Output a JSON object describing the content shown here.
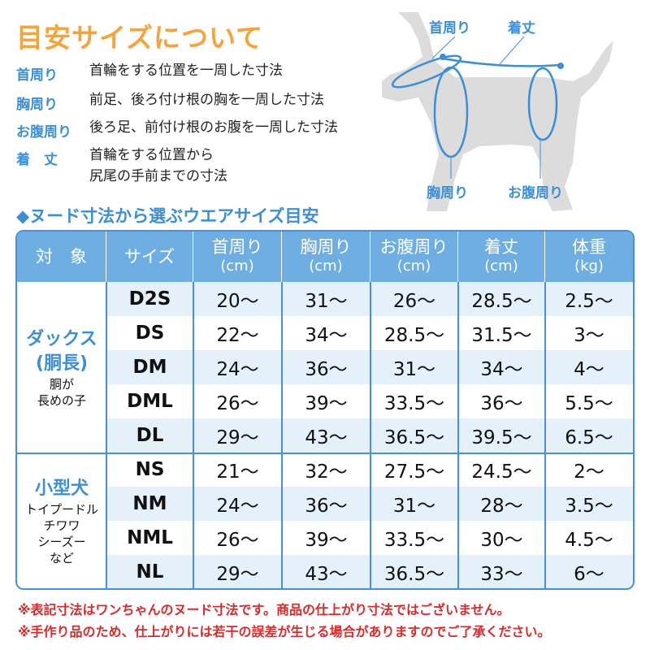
{
  "title": "目安サイズについて",
  "definitions": [
    {
      "term": "首周り",
      "desc": "首輪をする位置を一周した寸法"
    },
    {
      "term": "胸周り",
      "desc": "前足、後ろ付け根の胸を一周した寸法"
    },
    {
      "term": "お腹周り",
      "desc": "後ろ足、前付け根のお腹を一周した寸法"
    },
    {
      "term": "着　丈",
      "desc": "首輪をする位置から",
      "desc2": "尻尾の手前までの寸法"
    }
  ],
  "diagram": {
    "neck": "首周り",
    "length": "着丈",
    "chest": "胸周り",
    "belly": "お腹周り",
    "colors": {
      "silhouette": "#dcdcdc",
      "line": "#3c8fd6"
    }
  },
  "subtitle": "◆ヌード寸法から選ぶウエアサイズ目安",
  "table": {
    "headers": [
      {
        "l": "対　象",
        "u": ""
      },
      {
        "l": "サイズ",
        "u": ""
      },
      {
        "l": "首周り",
        "u": "(cm)"
      },
      {
        "l": "胸周り",
        "u": "(cm)"
      },
      {
        "l": "お腹周り",
        "u": "(cm)"
      },
      {
        "l": "着丈",
        "u": "(cm)"
      },
      {
        "l": "体重",
        "u": "(kg)"
      }
    ],
    "groups": [
      {
        "main": "ダックス",
        "main2": "(胴長)",
        "note": "胴が",
        "note2": "長めの子",
        "rows": [
          [
            "D2S",
            "20～",
            "31～",
            "26～",
            "28.5～",
            "2.5～"
          ],
          [
            "DS",
            "22～",
            "34～",
            "28.5～",
            "31.5～",
            "3～"
          ],
          [
            "DM",
            "24～",
            "36～",
            "31～",
            "34～",
            "4～"
          ],
          [
            "DML",
            "26～",
            "39～",
            "33.5～",
            "36～",
            "5.5～"
          ],
          [
            "DL",
            "29～",
            "43～",
            "36.5～",
            "39.5～",
            "6.5～"
          ]
        ]
      },
      {
        "main": "小型犬",
        "note": "トイプードル",
        "note2": "チワワ",
        "note3": "シーズー",
        "note4": "など",
        "rows": [
          [
            "NS",
            "21～",
            "32～",
            "27.5～",
            "24.5～",
            "2～"
          ],
          [
            "NM",
            "24～",
            "36～",
            "31～",
            "28～",
            "3.5～"
          ],
          [
            "NML",
            "26～",
            "39～",
            "33.5～",
            "30～",
            "4.5～"
          ],
          [
            "NL",
            "29～",
            "43～",
            "36.5～",
            "33～",
            "6～"
          ]
        ]
      }
    ]
  },
  "footnotes": [
    "※表記寸法はワンちゃんのヌード寸法です。商品の仕上がり寸法ではございません。",
    "※手作り品のため、仕上がりには若干の誤差が生じる場合がありますのでご了承ください。"
  ],
  "colors": {
    "title": "#f5a33a",
    "accent": "#3c8fd6",
    "header": "#6eaee3",
    "stripe": "#e4f1fb",
    "note": "#d92b2b"
  }
}
